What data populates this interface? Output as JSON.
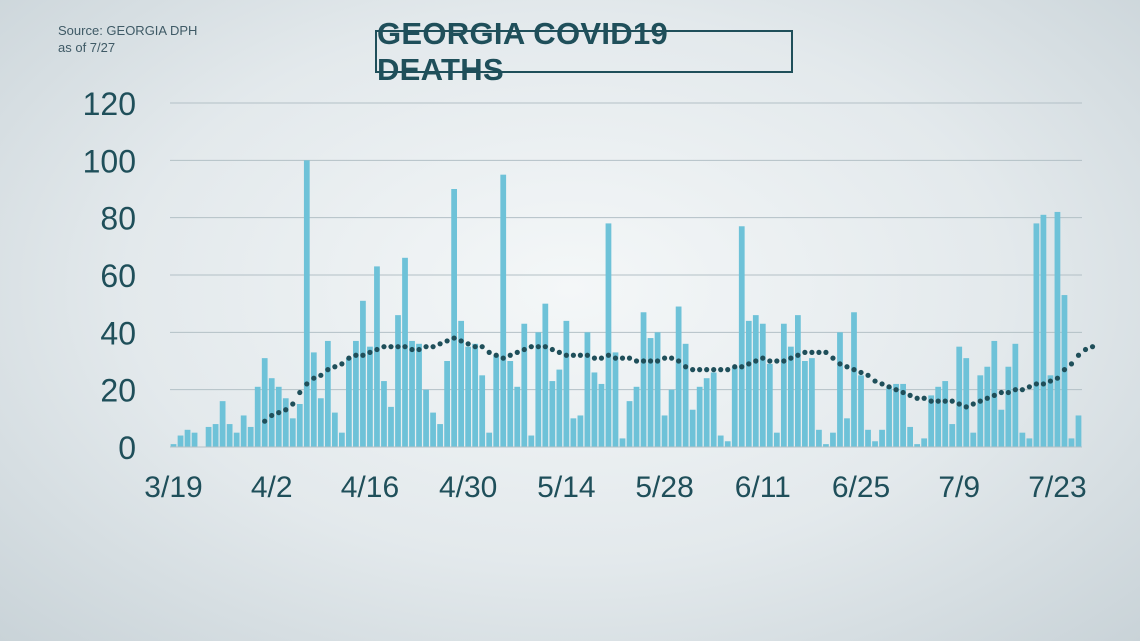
{
  "source": {
    "line1": "Source: GEORGIA DPH",
    "line2": "as of 7/27"
  },
  "chart_data": {
    "type": "bar",
    "title": "GEORGIA COVID19 DEATHS",
    "xlabel": "",
    "ylabel": "",
    "ylim": [
      0,
      120
    ],
    "yticks": [
      "0",
      "20",
      "40",
      "60",
      "80",
      "100",
      "120"
    ],
    "xticks": [
      {
        "label": "3/19",
        "index": 0
      },
      {
        "label": "4/2",
        "index": 14
      },
      {
        "label": "4/16",
        "index": 28
      },
      {
        "label": "4/30",
        "index": 42
      },
      {
        "label": "5/14",
        "index": 56
      },
      {
        "label": "5/28",
        "index": 70
      },
      {
        "label": "6/11",
        "index": 84
      },
      {
        "label": "6/25",
        "index": 98
      },
      {
        "label": "7/9",
        "index": 112
      },
      {
        "label": "7/23",
        "index": 126
      }
    ],
    "grid": true,
    "colors": {
      "bars": "#6ec2d8",
      "average": "#1f4f5a",
      "grid": "#b3c0c6",
      "text": "#1f4f5a"
    },
    "start_date": "3/19",
    "series": [
      {
        "type": "bar",
        "values": [
          1,
          4,
          6,
          5,
          0,
          7,
          8,
          16,
          8,
          5,
          11,
          7,
          21,
          31,
          24,
          21,
          17,
          10,
          15,
          100,
          33,
          17,
          37,
          12,
          5,
          31,
          37,
          51,
          35,
          63,
          23,
          14,
          46,
          66,
          37,
          36,
          20,
          12,
          8,
          30,
          90,
          44,
          35,
          36,
          25,
          5,
          32,
          95,
          30,
          21,
          43,
          4,
          40,
          50,
          23,
          27,
          44,
          10,
          11,
          40,
          26,
          22,
          78,
          33,
          3,
          16,
          21,
          47,
          38,
          40,
          11,
          20,
          49,
          36,
          13,
          21,
          24,
          26,
          4,
          2,
          28,
          77,
          44,
          46,
          43,
          29,
          5,
          43,
          35,
          46,
          30,
          31,
          6,
          1,
          5,
          40,
          10,
          47,
          25,
          6,
          2,
          6,
          21,
          22,
          22,
          7,
          1,
          3,
          18,
          21,
          23,
          8,
          35,
          31,
          5,
          25,
          28,
          37,
          13,
          28,
          36,
          5,
          3,
          78,
          81,
          25,
          82,
          53,
          3,
          11
        ]
      },
      {
        "type": "line",
        "style": "dotted",
        "values": [
          null,
          null,
          null,
          null,
          null,
          null,
          null,
          null,
          null,
          null,
          null,
          null,
          null,
          9,
          11,
          12,
          13,
          15,
          19,
          22,
          24,
          25,
          27,
          28,
          29,
          31,
          32,
          32,
          33,
          34,
          35,
          35,
          35,
          35,
          34,
          34,
          35,
          35,
          36,
          37,
          38,
          37,
          36,
          35,
          35,
          33,
          32,
          31,
          32,
          33,
          34,
          35,
          35,
          35,
          34,
          33,
          32,
          32,
          32,
          32,
          31,
          31,
          32,
          31,
          31,
          31,
          30,
          30,
          30,
          30,
          31,
          31,
          30,
          28,
          27,
          27,
          27,
          27,
          27,
          27,
          28,
          28,
          29,
          30,
          31,
          30,
          30,
          30,
          31,
          32,
          33,
          33,
          33,
          33,
          31,
          29,
          28,
          27,
          26,
          25,
          23,
          22,
          21,
          20,
          19,
          18,
          17,
          17,
          16,
          16,
          16,
          16,
          15,
          14,
          15,
          16,
          17,
          18,
          19,
          19,
          20,
          20,
          21,
          22,
          22,
          23,
          24,
          27,
          29,
          32,
          34,
          35
        ]
      }
    ]
  }
}
